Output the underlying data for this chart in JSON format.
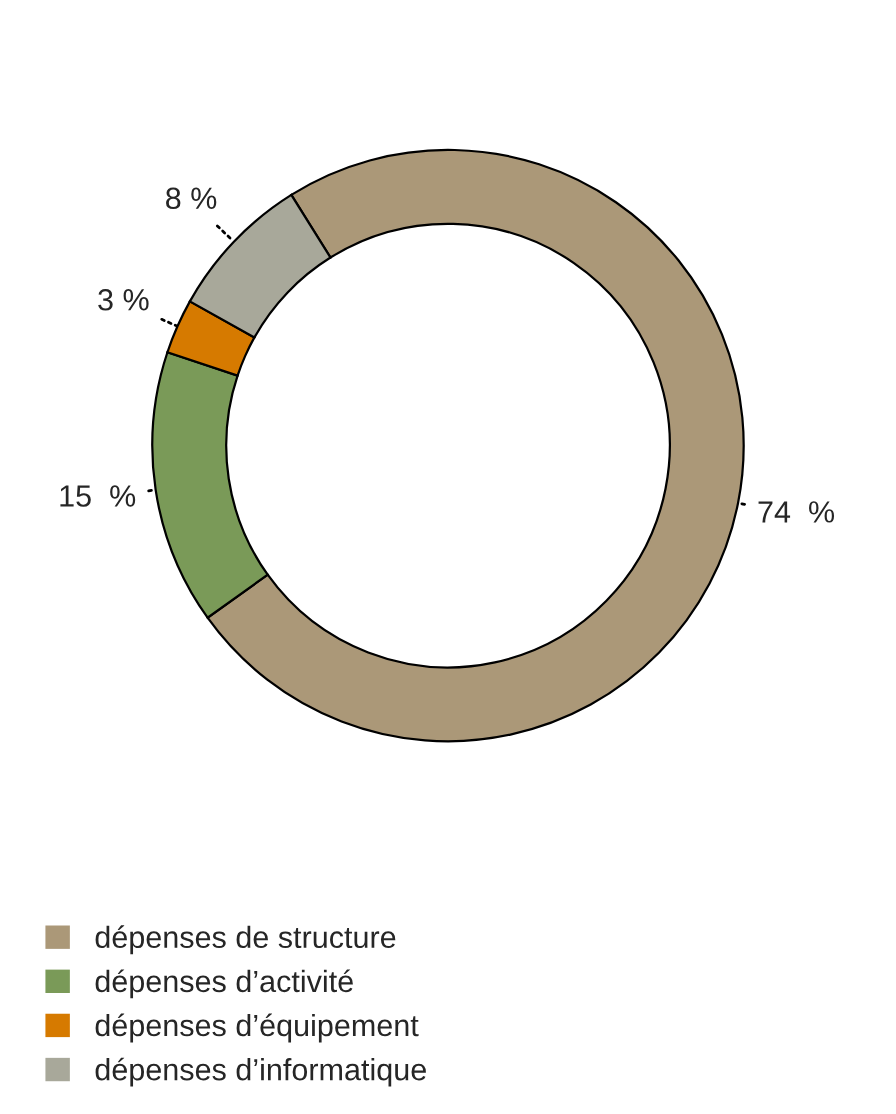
{
  "chart_data": {
    "type": "donut",
    "categories": [
      "dépenses de structure",
      "dépenses d’activité",
      "dépenses d’équipement",
      "dépenses d’informatique"
    ],
    "values": [
      74,
      15,
      3,
      8
    ],
    "value_labels": [
      "74  %",
      "15  %",
      "3 %",
      "8 %"
    ],
    "colors": [
      "#ab9878",
      "#7a9a58",
      "#d67a00",
      "#a8a89a"
    ],
    "legend": "bottom left"
  }
}
